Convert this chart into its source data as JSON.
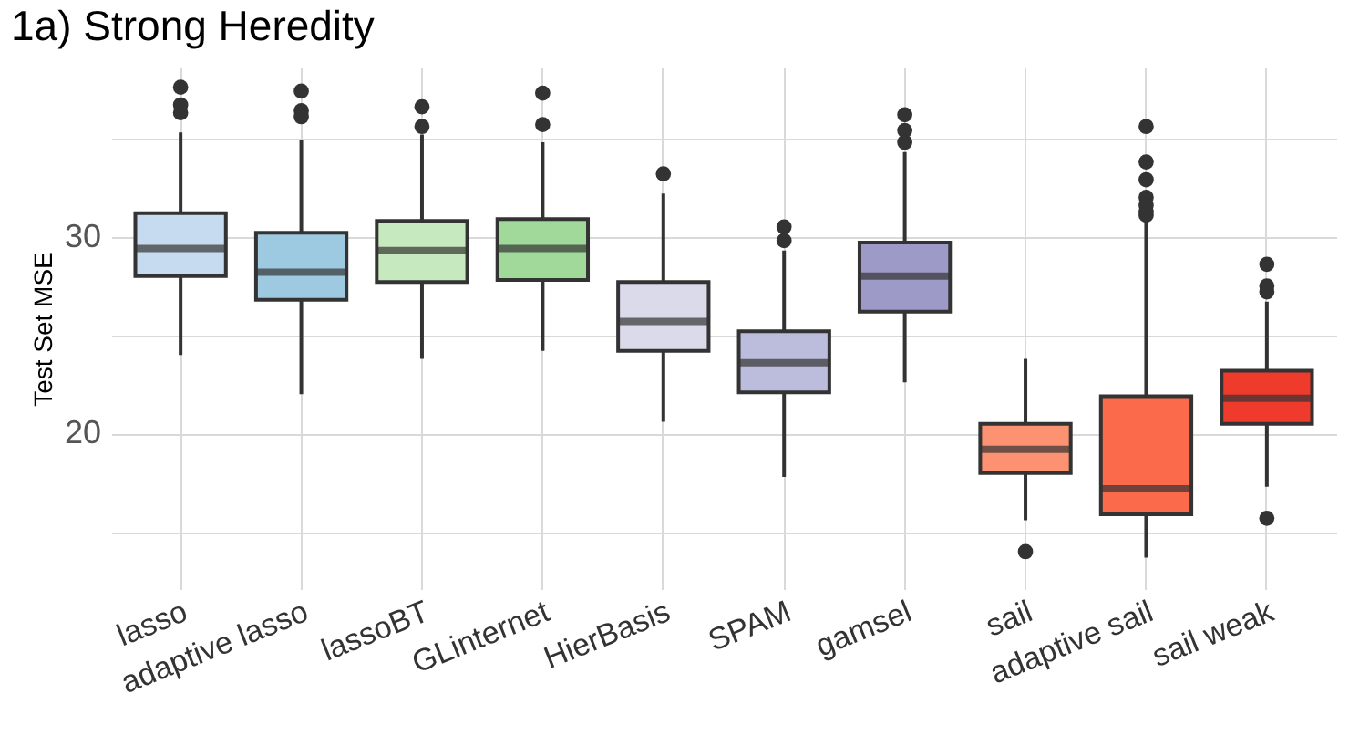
{
  "chart_data": {
    "type": "box",
    "title": "1a) Strong Heredity",
    "ylabel": "Test Set MSE",
    "categories": [
      "lasso",
      "adaptive lasso",
      "lassoBT",
      "GLinternet",
      "HierBasis",
      "SPAM",
      "gamsel",
      "sail",
      "adaptive sail",
      "sail weak"
    ],
    "colors": [
      "#c6dbef",
      "#9ecae1",
      "#c7e9c0",
      "#a1d99b",
      "#dadaeb",
      "#bcbddc",
      "#9e9ac8",
      "#fc9272",
      "#fb6a4a",
      "#ef3b2c"
    ],
    "boxes": [
      {
        "low": 24.0,
        "q1": 28.0,
        "median": 29.4,
        "q3": 31.2,
        "high": 35.3,
        "outliers": [
          37.6,
          36.7,
          36.3
        ]
      },
      {
        "low": 22.0,
        "q1": 26.8,
        "median": 28.2,
        "q3": 30.2,
        "high": 34.9,
        "outliers": [
          37.4,
          36.4,
          36.1
        ]
      },
      {
        "low": 23.8,
        "q1": 27.7,
        "median": 29.3,
        "q3": 30.8,
        "high": 35.2,
        "outliers": [
          36.6,
          35.6
        ]
      },
      {
        "low": 24.2,
        "q1": 27.8,
        "median": 29.4,
        "q3": 30.9,
        "high": 34.8,
        "outliers": [
          37.3,
          35.7
        ]
      },
      {
        "low": 20.6,
        "q1": 24.2,
        "median": 25.7,
        "q3": 27.7,
        "high": 32.2,
        "outliers": [
          33.2
        ]
      },
      {
        "low": 17.8,
        "q1": 22.1,
        "median": 23.6,
        "q3": 25.2,
        "high": 29.3,
        "outliers": [
          30.5,
          29.8
        ]
      },
      {
        "low": 22.6,
        "q1": 26.2,
        "median": 28.0,
        "q3": 29.7,
        "high": 34.3,
        "outliers": [
          36.2,
          35.4,
          34.8
        ]
      },
      {
        "low": 15.6,
        "q1": 18.0,
        "median": 19.2,
        "q3": 20.5,
        "high": 23.8,
        "outliers": [
          14.0
        ]
      },
      {
        "low": 13.7,
        "q1": 15.9,
        "median": 17.2,
        "q3": 21.9,
        "high": 30.9,
        "outliers": [
          35.6,
          33.8,
          32.9,
          32.0,
          31.6,
          31.3,
          31.1
        ]
      },
      {
        "low": 17.3,
        "q1": 20.5,
        "median": 21.8,
        "q3": 23.2,
        "high": 26.7,
        "outliers": [
          28.6,
          27.5,
          27.2,
          15.7
        ]
      }
    ],
    "ylim": [
      12.1,
      38.6
    ],
    "yticks": [
      {
        "value": 15,
        "label": null
      },
      20,
      {
        "value": 25,
        "label": null
      },
      30,
      {
        "value": 35,
        "label": null
      }
    ],
    "grid": true
  }
}
